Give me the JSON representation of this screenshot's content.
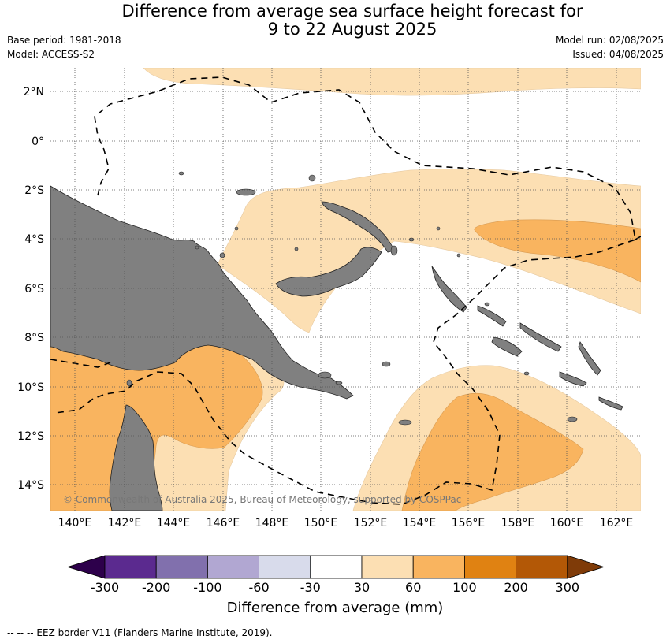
{
  "header": {
    "title_line1": "Difference from average sea surface height forecast for",
    "title_line2": "9 to 22 August 2025",
    "base_period": "Base period: 1981-2018",
    "model": "Model: ACCESS-S2",
    "model_run": "Model run: 02/08/2025",
    "issued": "Issued: 04/08/2025"
  },
  "map": {
    "lat_labels": [
      "2°N",
      "0°",
      "2°S",
      "4°S",
      "6°S",
      "8°S",
      "10°S",
      "12°S",
      "14°S"
    ],
    "lon_labels": [
      "140°E",
      "142°E",
      "144°E",
      "146°E",
      "148°E",
      "150°E",
      "152°E",
      "154°E",
      "156°E",
      "158°E",
      "160°E",
      "162°E"
    ],
    "copyright": "© Commonwealth of Australia 2025, Bureau of Meteorology, supported by COSPPac",
    "land_color": "#808080",
    "grid": "dotted"
  },
  "colorbar": {
    "ticks": [
      "-300",
      "-200",
      "-100",
      "-60",
      "-30",
      "30",
      "60",
      "100",
      "200",
      "300"
    ],
    "colors": [
      "#5b2a8f",
      "#8170ad",
      "#b1a7d2",
      "#d8dbeb",
      "#ffffff",
      "#fcdfb3",
      "#f9b45f",
      "#e08212",
      "#b35806"
    ],
    "under_color": "#2d004b",
    "over_color": "#7f3b08",
    "title": "Difference from average (mm)"
  },
  "footer": {
    "legend": "--  --  -- EEZ border V11 (Flanders Marine Institute, 2019)."
  }
}
